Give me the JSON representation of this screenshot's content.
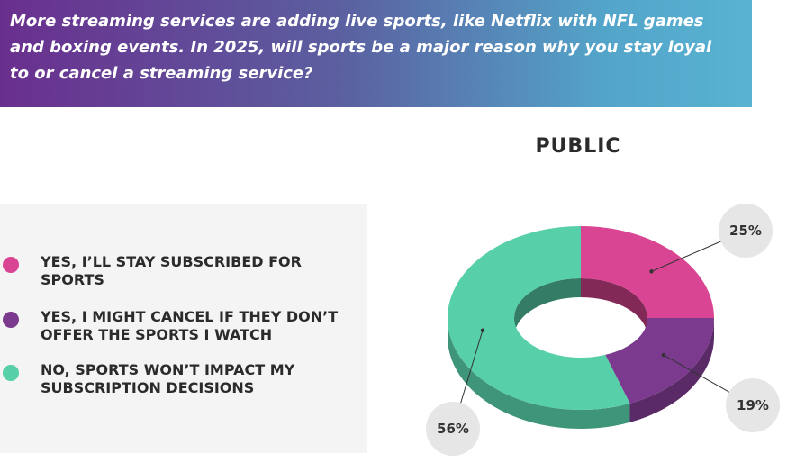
{
  "question": "More streaming services are adding live sports, like Netflix with NFL games and boxing events. In 2025, will sports be a major reason why you stay loyal to or cancel a streaming service?",
  "colors": {
    "yes_stay": "#d94593",
    "yes_cancel": "#7b3a8e",
    "no_impact": "#57cfa8"
  },
  "legend": [
    {
      "label": "YES, I’LL STAY SUBSCRIBED FOR SPORTS",
      "color": "#d94593"
    },
    {
      "label": "YES, I MIGHT CANCEL IF THEY DON’T OFFER THE SPORTS I WATCH",
      "color": "#7b3a8e"
    },
    {
      "label": "NO, SPORTS WON’T IMPACT MY SUBSCRIPTION DECISIONS",
      "color": "#57cfa8"
    }
  ],
  "chart_data": {
    "type": "pie",
    "style": "donut-3d",
    "title": "PUBLIC",
    "categories": [
      "YES, I’LL STAY SUBSCRIBED FOR SPORTS",
      "YES, I MIGHT CANCEL IF THEY DON’T OFFER THE SPORTS I WATCH",
      "NO, SPORTS WON’T IMPACT MY SUBSCRIPTION DECISIONS"
    ],
    "values": [
      25,
      19,
      56
    ],
    "data_labels": [
      "25%",
      "19%",
      "56%"
    ],
    "legend_placement": "left"
  }
}
